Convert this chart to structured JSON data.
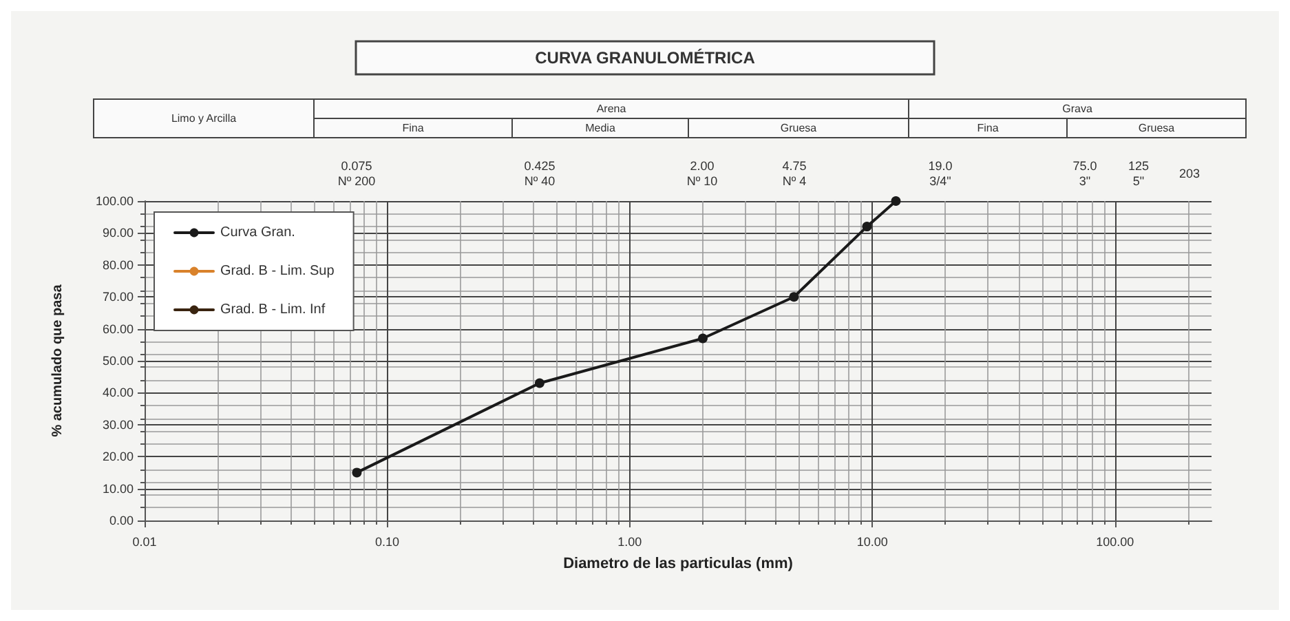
{
  "chart_data": {
    "type": "line",
    "title": "CURVA GRANULOMÉTRICA",
    "xlabel": "Diametro de las particulas (mm)",
    "ylabel": "% acumulado que pasa",
    "annotations": [
      "Limo y Arcilla",
      "Arena",
      "Fina",
      "Media",
      "Gruesa",
      "Grava",
      "Fina",
      "Gruesa",
      "0.075\nNº 200",
      "0.425\nNº 40",
      "2.00\nNº 10",
      "4.75\nNº 4",
      "19.0\n3/4\"",
      "75.0\n3\"",
      "125\n5\"",
      "203"
    ],
    "log": "x",
    "x": [
      0.075,
      0.425,
      2.0,
      4.75,
      9.5,
      12.5
    ],
    "series": [
      {
        "name": "Curva Gran.",
        "color": "#1a1a1a",
        "values": [
          15,
          43,
          57,
          70,
          92,
          100
        ]
      },
      {
        "name": "Grad. B - Lim. Sup",
        "color": "#d9822b",
        "values": [
          null,
          null,
          null,
          null,
          null,
          null
        ]
      },
      {
        "name": "Grad. B - Lim. Inf",
        "color": "#3a2410",
        "values": [
          null,
          null,
          null,
          null,
          null,
          null
        ]
      }
    ],
    "xlim": [
      0.01,
      250
    ],
    "xticks": [
      {
        "value": 0.01,
        "label": "0.01"
      },
      {
        "value": 0.1,
        "label": "0.10"
      },
      {
        "value": 1,
        "label": "1.00"
      },
      {
        "value": 10,
        "label": "10.00"
      },
      {
        "value": 100,
        "label": "100.00"
      }
    ],
    "ylim": [
      0,
      100
    ],
    "yticks": [
      {
        "value": 0,
        "label": "0.00"
      },
      {
        "value": 10,
        "label": "10.00"
      },
      {
        "value": 20,
        "label": "20.00"
      },
      {
        "value": 30,
        "label": "30.00"
      },
      {
        "value": 40,
        "label": "40.00"
      },
      {
        "value": 50,
        "label": "50.00"
      },
      {
        "value": 60,
        "label": "60.00"
      },
      {
        "value": 70,
        "label": "70.00"
      },
      {
        "value": 80,
        "label": "80.00"
      },
      {
        "value": 90,
        "label": "90.00"
      },
      {
        "value": 100,
        "label": "100.00"
      }
    ],
    "grid": true,
    "legend": "top left",
    "marker": "circle",
    "line_style": "solid"
  }
}
